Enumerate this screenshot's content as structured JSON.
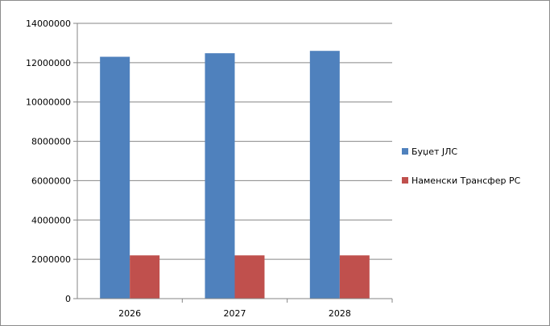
{
  "chart_data": {
    "type": "bar",
    "categories": [
      "2026",
      "2027",
      "2028"
    ],
    "series": [
      {
        "name": "Буџет ЈЛС",
        "color": "#4f81bd",
        "values": [
          12300000,
          12480000,
          12600000
        ]
      },
      {
        "name": "Наменски Трансфер РС",
        "color": "#c0504d",
        "values": [
          2200000,
          2200000,
          2200000
        ]
      }
    ],
    "ylim": [
      0,
      14000000
    ],
    "yticks": [
      "0",
      "2000000",
      "4000000",
      "6000000",
      "8000000",
      "10000000",
      "12000000",
      "14000000"
    ],
    "grid": true,
    "legend_position": "right"
  }
}
